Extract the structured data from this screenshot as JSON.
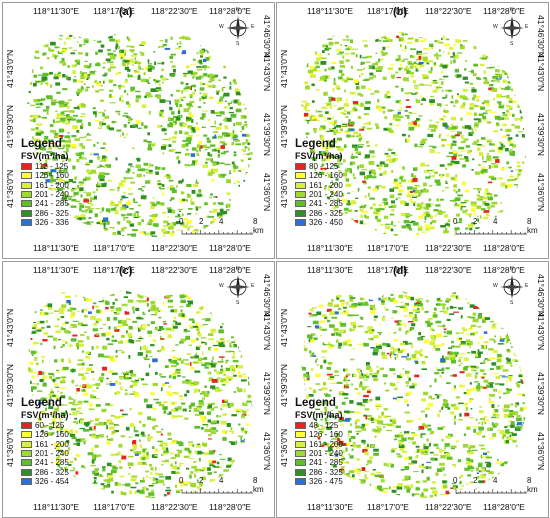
{
  "panels": [
    {
      "label": "(a)",
      "legend_ranges": [
        "112 - 125",
        "126 - 160",
        "161 - 200",
        "201 - 240",
        "241 - 285",
        "286 - 325",
        "326 - 336"
      ]
    },
    {
      "label": "(b)",
      "legend_ranges": [
        "80 - 125",
        "126 - 160",
        "161 - 200",
        "201 - 240",
        "241 - 285",
        "286 - 325",
        "326 - 450"
      ]
    },
    {
      "label": "(c)",
      "legend_ranges": [
        "60 - 125",
        "126 - 160",
        "161 - 200",
        "201 - 240",
        "241 - 285",
        "286 - 325",
        "326 - 454"
      ]
    },
    {
      "label": "(d)",
      "legend_ranges": [
        "48 - 125",
        "126 - 160",
        "161 - 200",
        "201 - 240",
        "241 - 285",
        "286 - 325",
        "326 - 475"
      ]
    }
  ],
  "legend": {
    "title": "Legend",
    "unit": "FSV(m³/ha)",
    "colors": [
      "#e8231f",
      "#ffff33",
      "#d8f03a",
      "#9ed92f",
      "#5fbf2a",
      "#2e8f22",
      "#2d6fd6"
    ]
  },
  "axes": {
    "top_labels": [
      "118°11′30″E",
      "118°17′0″E",
      "118°22′30″E",
      "118°28′0″E"
    ],
    "bottom_labels": [
      "118°11′30″E",
      "118°17′0″E",
      "118°22′30″E",
      "118°28′0″E"
    ],
    "left_labels": [
      "41°36′0″N",
      "41°39′30″N",
      "41°43′0″N"
    ],
    "right_labels": [
      "41°36′0″N",
      "41°39′30″N",
      "41°43′0″N",
      "41°46′30″N"
    ]
  },
  "scale_bar": {
    "ticks": [
      "0",
      "2",
      "4",
      "8 km"
    ]
  },
  "compass_letters": {
    "n": "N",
    "s": "S",
    "e": "E",
    "w": "W"
  }
}
